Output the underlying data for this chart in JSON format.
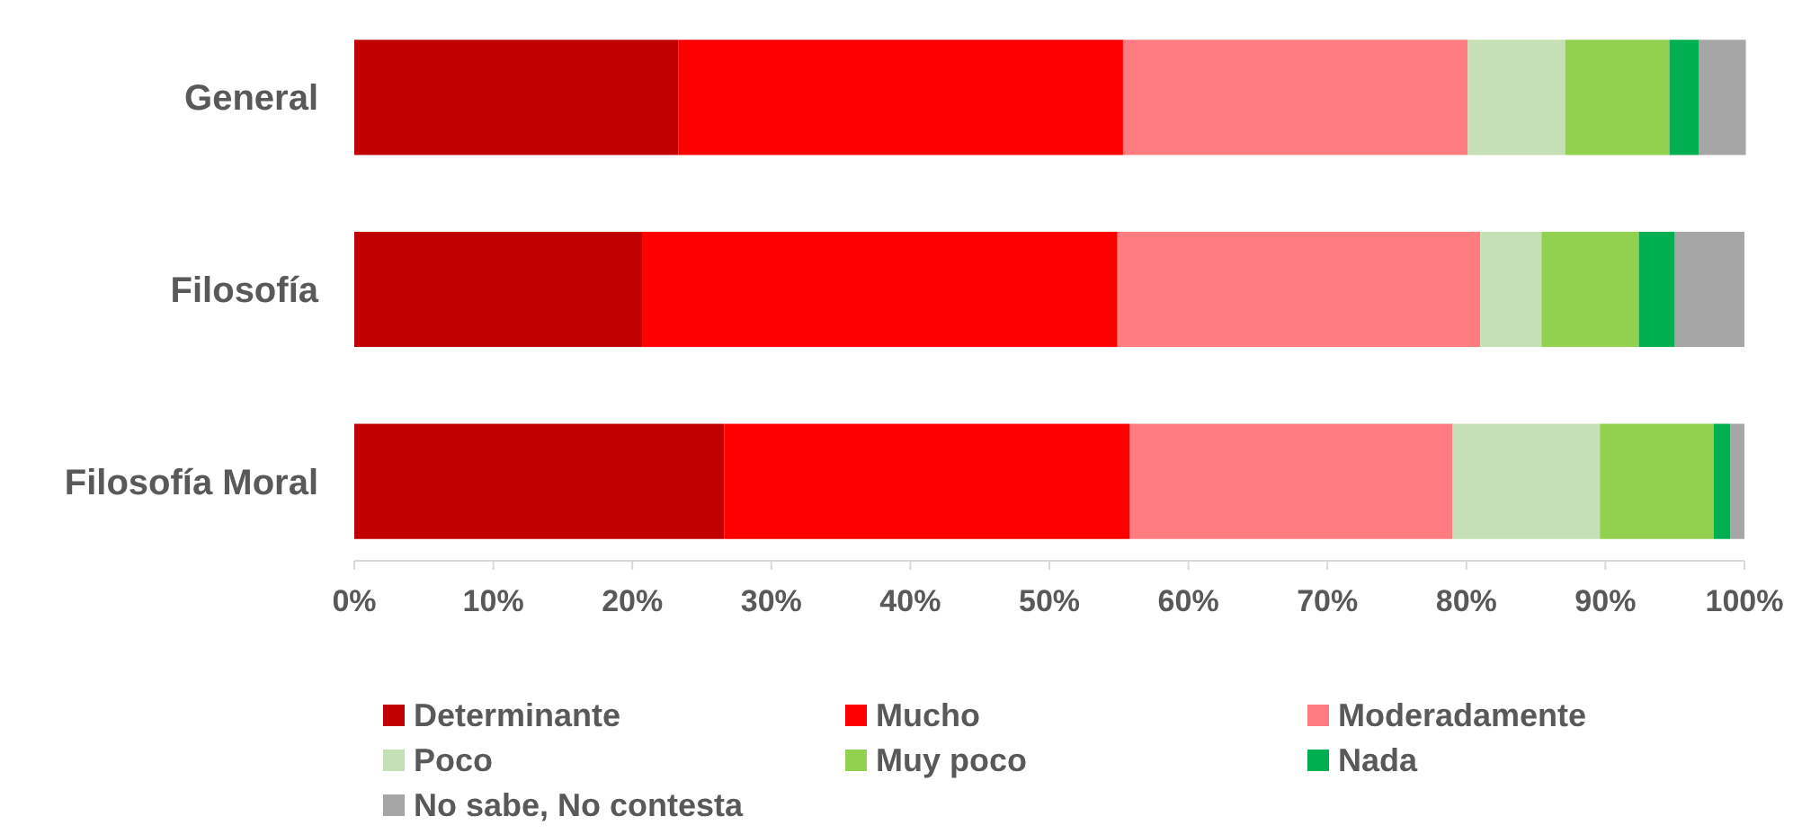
{
  "chart_data": {
    "type": "bar",
    "orientation": "horizontal",
    "stacked": true,
    "categories": [
      "General",
      "Filosofía",
      "Filosofía Moral"
    ],
    "series": [
      {
        "name": "Determinante",
        "color": "#c00000",
        "values": [
          23.3,
          20.7,
          26.6
        ]
      },
      {
        "name": "Mucho",
        "color": "#ff0000",
        "values": [
          32.0,
          34.2,
          29.2
        ]
      },
      {
        "name": "Moderadamente",
        "color": "#ff7c80",
        "values": [
          24.8,
          26.1,
          23.2
        ]
      },
      {
        "name": "Poco",
        "color": "#c5e0b4",
        "values": [
          7.0,
          4.4,
          10.6
        ]
      },
      {
        "name": "Muy poco",
        "color": "#92d050",
        "values": [
          7.5,
          7.0,
          8.2
        ]
      },
      {
        "name": "Nada",
        "color": "#00b050",
        "values": [
          2.1,
          2.6,
          1.2
        ]
      },
      {
        "name": "No sabe, No contesta",
        "color": "#a6a6a6",
        "values": [
          3.4,
          5.0,
          1.0
        ]
      }
    ],
    "xlim": [
      0,
      100
    ],
    "xticks": [
      {
        "value": 0,
        "label": "0%"
      },
      {
        "value": 10,
        "label": "10%"
      },
      {
        "value": 20,
        "label": "20%"
      },
      {
        "value": 30,
        "label": "30%"
      },
      {
        "value": 40,
        "label": "40%"
      },
      {
        "value": 50,
        "label": "50%"
      },
      {
        "value": 60,
        "label": "60%"
      },
      {
        "value": 70,
        "label": "70%"
      },
      {
        "value": 80,
        "label": "80%"
      },
      {
        "value": 90,
        "label": "90%"
      },
      {
        "value": 100,
        "label": "100%"
      }
    ],
    "legend": "bottom",
    "grid": false
  }
}
